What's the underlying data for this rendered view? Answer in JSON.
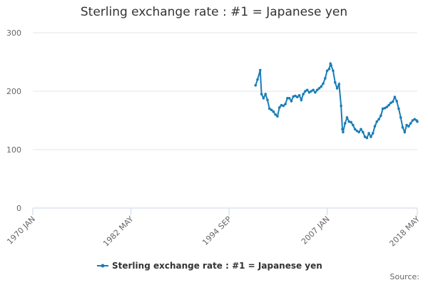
{
  "chart_data": {
    "type": "line",
    "title": "Sterling exchange rate : #1 = Japanese yen",
    "source": "Source:",
    "x": [
      "1998 JAN",
      "1998 APR",
      "1998 AUG",
      "1998 OCT",
      "1999 JAN",
      "1999 APR",
      "1999 JUL",
      "1999 OCT",
      "2000 JAN",
      "2000 APR",
      "2000 JUL",
      "2000 OCT",
      "2001 JAN",
      "2001 APR",
      "2001 JUL",
      "2001 OCT",
      "2002 JAN",
      "2002 APR",
      "2002 JUL",
      "2002 OCT",
      "2003 JAN",
      "2003 APR",
      "2003 JUL",
      "2003 OCT",
      "2004 JAN",
      "2004 APR",
      "2004 JUL",
      "2004 OCT",
      "2005 JAN",
      "2005 APR",
      "2005 JUL",
      "2005 OCT",
      "2006 JAN",
      "2006 APR",
      "2006 JUL",
      "2006 OCT",
      "2007 JAN",
      "2007 APR",
      "2007 JUN",
      "2007 JUL",
      "2007 OCT",
      "2008 JAN",
      "2008 APR",
      "2008 JUL",
      "2008 OCT",
      "2008 DEC",
      "2009 JAN",
      "2009 APR",
      "2009 JUL",
      "2009 OCT",
      "2010 JAN",
      "2010 APR",
      "2010 JUL",
      "2010 OCT",
      "2011 JAN",
      "2011 APR",
      "2011 JUL",
      "2011 OCT",
      "2012 JAN",
      "2012 APR",
      "2012 JUL",
      "2012 OCT",
      "2013 JAN",
      "2013 APR",
      "2013 JUL",
      "2013 OCT",
      "2014 JAN",
      "2014 APR",
      "2014 JUL",
      "2014 OCT",
      "2015 JAN",
      "2015 APR",
      "2015 JUL",
      "2015 OCT",
      "2016 JAN",
      "2016 APR",
      "2016 JUL",
      "2016 OCT",
      "2017 JAN",
      "2017 APR",
      "2017 JUL",
      "2017 OCT",
      "2018 JAN",
      "2018 APR",
      "2018 MAY"
    ],
    "series": [
      {
        "name": "Sterling exchange rate : #1 = Japanese yen",
        "color": "#1a7db6",
        "values": [
          210,
          220,
          236,
          195,
          188,
          195,
          185,
          170,
          168,
          165,
          160,
          157,
          172,
          176,
          175,
          178,
          188,
          188,
          183,
          191,
          192,
          190,
          193,
          185,
          195,
          200,
          202,
          198,
          200,
          202,
          198,
          202,
          205,
          208,
          213,
          222,
          235,
          238,
          247,
          244,
          235,
          215,
          205,
          212,
          175,
          135,
          130,
          145,
          155,
          148,
          147,
          142,
          135,
          132,
          130,
          135,
          130,
          122,
          120,
          128,
          122,
          128,
          140,
          148,
          152,
          158,
          170,
          171,
          173,
          176,
          180,
          182,
          190,
          183,
          170,
          155,
          138,
          130,
          142,
          140,
          145,
          150,
          152,
          150,
          148
        ]
      }
    ],
    "xlim": [
      "1970 JAN",
      "2018 MAY"
    ],
    "xticks": [
      "1970 JAN",
      "1982 MAY",
      "1994 SEP",
      "2007 JAN",
      "2018 MAY"
    ],
    "ylim": [
      0,
      300
    ],
    "yticks": [
      0,
      100,
      200,
      300
    ],
    "grid": true
  }
}
